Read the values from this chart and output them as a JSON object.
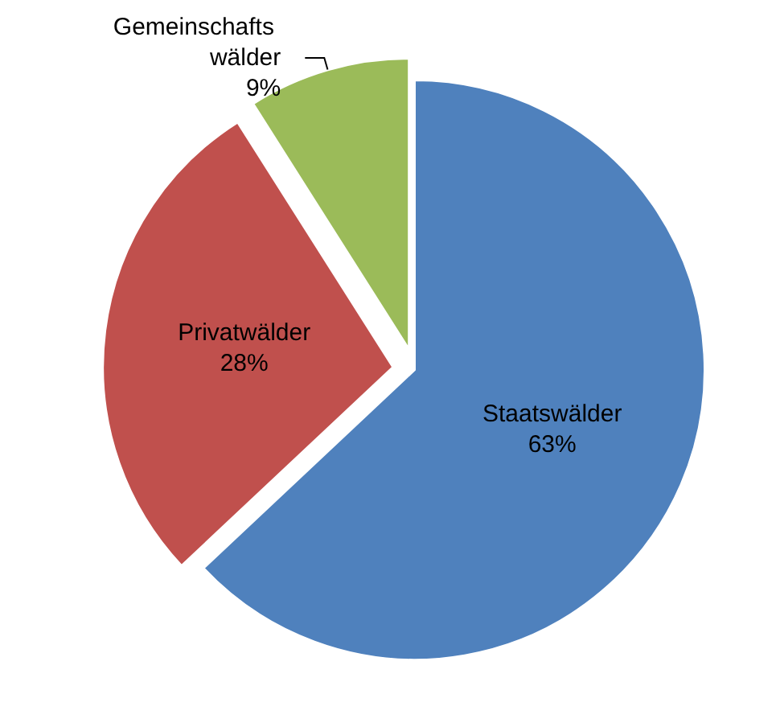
{
  "chart_data": {
    "type": "pie",
    "categories": [
      "Staatswälder",
      "Privatwälder",
      "Gemeinschafts wälder"
    ],
    "values": [
      63,
      28,
      9
    ],
    "colors": [
      "#4f81bd",
      "#c0504d",
      "#9bbb59"
    ],
    "value_labels": [
      "63%",
      "28%",
      "9%"
    ]
  }
}
